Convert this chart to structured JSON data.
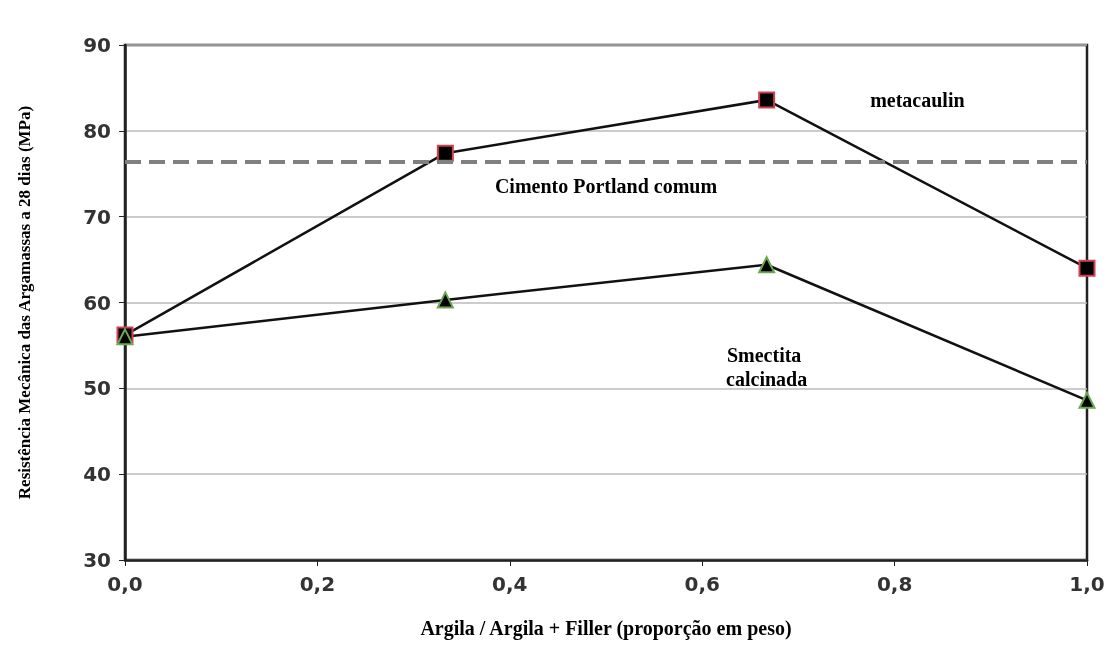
{
  "chart_data": {
    "type": "line",
    "xlabel": "Argila / Argila + Filler (proporção em peso)",
    "ylabel": "Resistência Mecânica das Argamassas a 28 dias (MPa)",
    "x": [
      0,
      0.333,
      0.667,
      1.0
    ],
    "series": [
      {
        "name": "metacaulin",
        "color": "#000000",
        "marker": "square",
        "values": [
          56.2,
          77.4,
          83.6,
          64.0
        ]
      },
      {
        "name": "Smectita calcinada",
        "color": "#000000",
        "marker": "triangle",
        "values": [
          56.0,
          60.3,
          64.4,
          48.6
        ]
      }
    ],
    "xlim": [
      0,
      1
    ],
    "xticks": [
      {
        "value": 0,
        "label": "0,0"
      },
      {
        "value": 0.2,
        "label": "0,2"
      },
      {
        "value": 0.4,
        "label": "0,4"
      },
      {
        "value": 0.6,
        "label": "0,6"
      },
      {
        "value": 0.8,
        "label": "0,8"
      },
      {
        "value": 1,
        "label": "1,0"
      }
    ],
    "ylim": [
      30,
      90
    ],
    "yticks": [
      30,
      40,
      50,
      60,
      70,
      80,
      90
    ],
    "ref_lines": [
      {
        "axis": "y",
        "value": 76.4,
        "label": "Cimento Portland comum",
        "color": "#808080",
        "line_style": "dashed"
      }
    ],
    "grid": "y",
    "legend": false,
    "line_style": "solid"
  }
}
